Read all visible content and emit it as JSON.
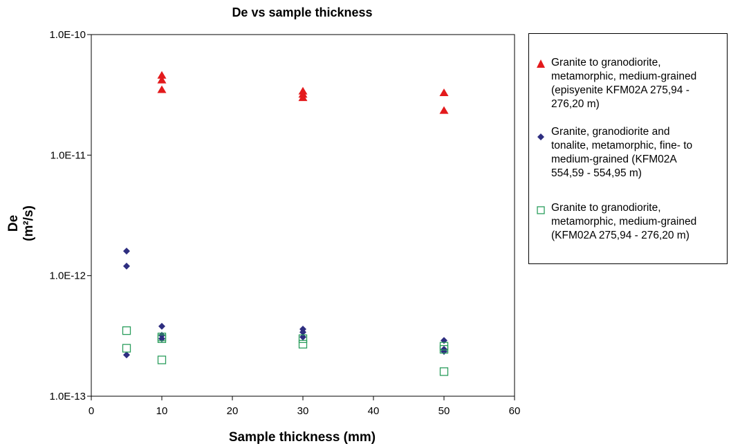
{
  "chart_data": {
    "type": "scatter",
    "title": "De vs sample thickness",
    "xlabel": "Sample thickness (mm)",
    "ylabel": "De (m²/s)",
    "xlim": [
      0,
      60
    ],
    "ylim": [
      1e-13,
      1e-10
    ],
    "yscale": "log",
    "xticks": [
      "0",
      "10",
      "20",
      "30",
      "40",
      "50",
      "60"
    ],
    "yticks": [
      "1.0E-13",
      "1.0E-12",
      "1.0E-11",
      "1.0E-10"
    ],
    "legend_position": "right",
    "series": [
      {
        "name": "Granite to granodiorite, metamorphic, medium-grained (episyenite KFM02A 275,94 - 276,20 m)",
        "marker": "triangle",
        "color": "#e31a1c",
        "x": [
          10,
          10,
          10,
          30,
          30,
          30,
          50,
          50
        ],
        "y": [
          4.6e-11,
          4.2e-11,
          3.5e-11,
          3.4e-11,
          3.2e-11,
          3e-11,
          3.3e-11,
          2.35e-11
        ]
      },
      {
        "name": "Granite, granodiorite and tonalite, metamorphic, fine- to medium-grained (KFM02A 554,59 - 554,95 m)",
        "marker": "diamond",
        "color": "#2e2e80",
        "x": [
          5,
          5,
          5,
          10,
          10,
          10,
          30,
          30,
          30,
          50,
          50,
          50
        ],
        "y": [
          1.6e-12,
          1.2e-12,
          2.2e-13,
          3.8e-13,
          3.2e-13,
          3e-13,
          3.6e-13,
          3.4e-13,
          3.1e-13,
          2.9e-13,
          2.45e-13,
          2.35e-13
        ]
      },
      {
        "name": "Granite to granodiorite, metamorphic, medium-grained (KFM02A 275,94 - 276,20 m)",
        "marker": "square-open",
        "color": "#2a9d5c",
        "x": [
          5,
          5,
          10,
          10,
          10,
          30,
          30,
          50,
          50,
          50
        ],
        "y": [
          3.5e-13,
          2.5e-13,
          3.1e-13,
          3e-13,
          2e-13,
          3e-13,
          2.7e-13,
          2.6e-13,
          2.45e-13,
          1.6e-13
        ]
      }
    ]
  },
  "legend": {
    "entries": [
      {
        "text": "Granite to granodiorite,\nmetamorphic, medium-grained\n(episyenite KFM02A 275,94 -\n276,20 m)"
      },
      {
        "text": "Granite, granodiorite and\ntonalite, metamorphic, fine- to\nmedium-grained (KFM02A\n554,59 - 554,95 m)"
      },
      {
        "text": "Granite to granodiorite,\nmetamorphic, medium-grained\n(KFM02A 275,94 - 276,20 m)"
      }
    ]
  }
}
